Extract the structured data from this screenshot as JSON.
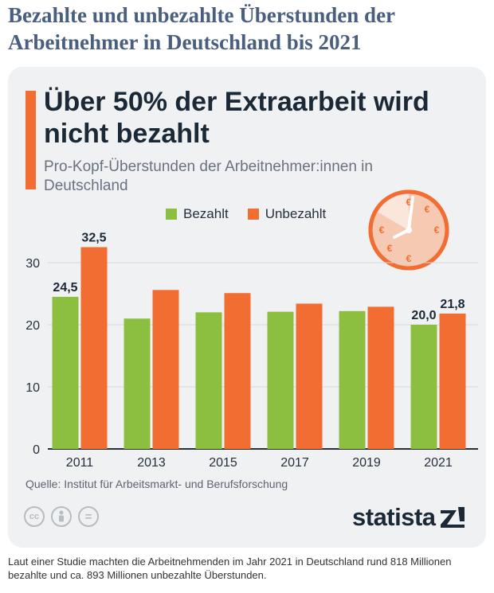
{
  "page_title": "Bezahlte und unbezahlte Überstunden der Arbeitnehmer in Deutschland bis 2021",
  "colors": {
    "paid": "#8cbf3f",
    "unpaid": "#f26d32",
    "accent": "#f26d32",
    "card_bg": "#f0f1f3",
    "title": "#4a5f80"
  },
  "chart_data": {
    "type": "bar",
    "title": "Über 50% der Extraarbeit wird nicht bezahlt",
    "subtitle": "Pro-Kopf-Überstunden der Arbeitnehmer:innen in Deutschland",
    "categories": [
      "2011",
      "2013",
      "2015",
      "2017",
      "2019",
      "2021"
    ],
    "series": [
      {
        "name": "Bezahlt",
        "color": "#8cbf3f",
        "values": [
          24.5,
          21.0,
          22.0,
          22.1,
          22.2,
          20.0
        ],
        "labels": [
          "24,5",
          "",
          "",
          "",
          "",
          "20,0"
        ]
      },
      {
        "name": "Unbezahlt",
        "color": "#f26d32",
        "values": [
          32.5,
          25.6,
          25.1,
          23.4,
          22.9,
          21.8
        ],
        "labels": [
          "32,5",
          "",
          "",
          "",
          "",
          "21,8"
        ]
      }
    ],
    "yticks": [
      0,
      10,
      20,
      30
    ],
    "ylim": [
      0,
      35
    ],
    "xlabel": "",
    "ylabel": "",
    "grid": true,
    "legend_position": "top"
  },
  "source": "Quelle: Institut für Arbeitsmarkt- und Berufsforschung",
  "license_icons": [
    "cc-icon",
    "person-icon",
    "equals-icon"
  ],
  "cc_text": {
    "cc": "cc",
    "equals": "="
  },
  "brand": {
    "name": "statista",
    "icon": "statista-logo-icon"
  },
  "caption": "Laut einer Studie machten die Arbeitnehmenden im Jahr 2021 in Deutschland rund 818 Millionen bezahlte und ca. 893 Millionen unbezahlte Überstunden.",
  "clock": {
    "icon": "clock-icon",
    "symbol": "€"
  }
}
